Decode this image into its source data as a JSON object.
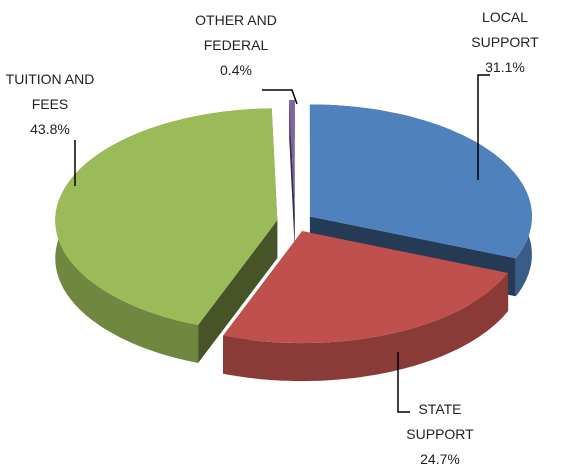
{
  "chart_data": {
    "type": "pie",
    "categories": [
      "LOCAL SUPPORT",
      "STATE SUPPORT",
      "TUITION AND FEES",
      "OTHER AND FEDERAL"
    ],
    "values": [
      31.1,
      24.7,
      43.8,
      0.4
    ],
    "value_labels": [
      "31.1%",
      "24.7%",
      "43.8%",
      "0.4%"
    ],
    "colors": [
      "#4f81bd",
      "#c0504d",
      "#9bbb59",
      "#8064a2"
    ]
  }
}
